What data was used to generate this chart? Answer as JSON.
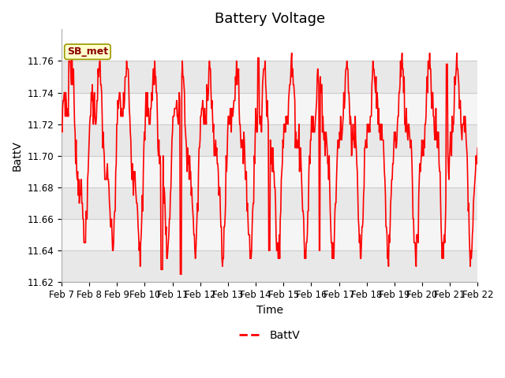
{
  "title": "Battery Voltage",
  "xlabel": "Time",
  "ylabel": "BattV",
  "ylim": [
    11.62,
    11.78
  ],
  "yticks": [
    11.62,
    11.64,
    11.66,
    11.68,
    11.7,
    11.72,
    11.74,
    11.76
  ],
  "line_color": "#FF0000",
  "line_width": 1.2,
  "background_color": "#ffffff",
  "plot_bg_color": "#ffffff",
  "band_colors": [
    "#e8e8e8",
    "#f5f5f5"
  ],
  "legend_label": "BattV",
  "annotation_text": "SB_met",
  "annotation_bg": "#ffffcc",
  "annotation_border": "#999900",
  "x_tick_labels": [
    "Feb 7",
    "Feb 8",
    "Feb 9",
    "Feb 10",
    "Feb 11",
    "Feb 12",
    "Feb 13",
    "Feb 14",
    "Feb 15",
    "Feb 16",
    "Feb 17",
    "Feb 18",
    "Feb 19",
    "Feb 20",
    "Feb 21",
    "Feb 22"
  ],
  "title_fontsize": 13,
  "axis_label_fontsize": 10,
  "tick_fontsize": 8.5
}
